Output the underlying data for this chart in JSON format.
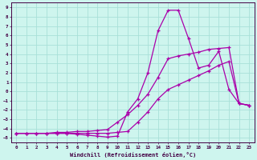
{
  "xlabel": "Windchill (Refroidissement éolien,°C)",
  "bg_color": "#cef5ee",
  "grid_color": "#a8e0d8",
  "line_color": "#aa00aa",
  "xlim": [
    -0.5,
    23.5
  ],
  "ylim": [
    -5.5,
    9.5
  ],
  "xticks": [
    0,
    1,
    2,
    3,
    4,
    5,
    6,
    7,
    8,
    9,
    10,
    11,
    12,
    13,
    14,
    15,
    16,
    17,
    18,
    19,
    20,
    21,
    22,
    23
  ],
  "yticks": [
    -5,
    -4,
    -3,
    -2,
    -1,
    0,
    1,
    2,
    3,
    4,
    5,
    6,
    7,
    8,
    9
  ],
  "series1_x": [
    0,
    1,
    2,
    3,
    4,
    5,
    6,
    7,
    8,
    9,
    10,
    11,
    12,
    13,
    14,
    15,
    16,
    17,
    18,
    19,
    20,
    21,
    22,
    23
  ],
  "series1_y": [
    -4.5,
    -4.5,
    -4.5,
    -4.5,
    -4.5,
    -4.5,
    -4.6,
    -4.7,
    -4.8,
    -4.9,
    -4.8,
    -2.2,
    -0.8,
    2.0,
    6.5,
    8.7,
    8.7,
    5.7,
    2.5,
    2.8,
    4.3,
    0.2,
    -1.3,
    -1.5
  ],
  "series2_x": [
    0,
    1,
    2,
    3,
    4,
    5,
    6,
    7,
    8,
    9,
    10,
    11,
    12,
    13,
    14,
    15,
    16,
    17,
    18,
    19,
    20,
    21,
    22,
    23
  ],
  "series2_y": [
    -4.5,
    -4.5,
    -4.5,
    -4.5,
    -4.4,
    -4.4,
    -4.3,
    -4.3,
    -4.2,
    -4.1,
    -3.3,
    -2.5,
    -1.5,
    -0.3,
    1.5,
    3.5,
    3.8,
    4.0,
    4.2,
    4.5,
    4.6,
    4.7,
    -1.3,
    -1.5
  ],
  "series3_x": [
    0,
    1,
    2,
    3,
    4,
    5,
    6,
    7,
    8,
    9,
    10,
    11,
    12,
    13,
    14,
    15,
    16,
    17,
    18,
    19,
    20,
    21,
    22,
    23
  ],
  "series3_y": [
    -4.5,
    -4.5,
    -4.5,
    -4.5,
    -4.5,
    -4.5,
    -4.5,
    -4.5,
    -4.5,
    -4.5,
    -4.4,
    -4.3,
    -3.3,
    -2.2,
    -0.8,
    0.2,
    0.7,
    1.2,
    1.7,
    2.2,
    2.8,
    3.2,
    -1.3,
    -1.5
  ]
}
